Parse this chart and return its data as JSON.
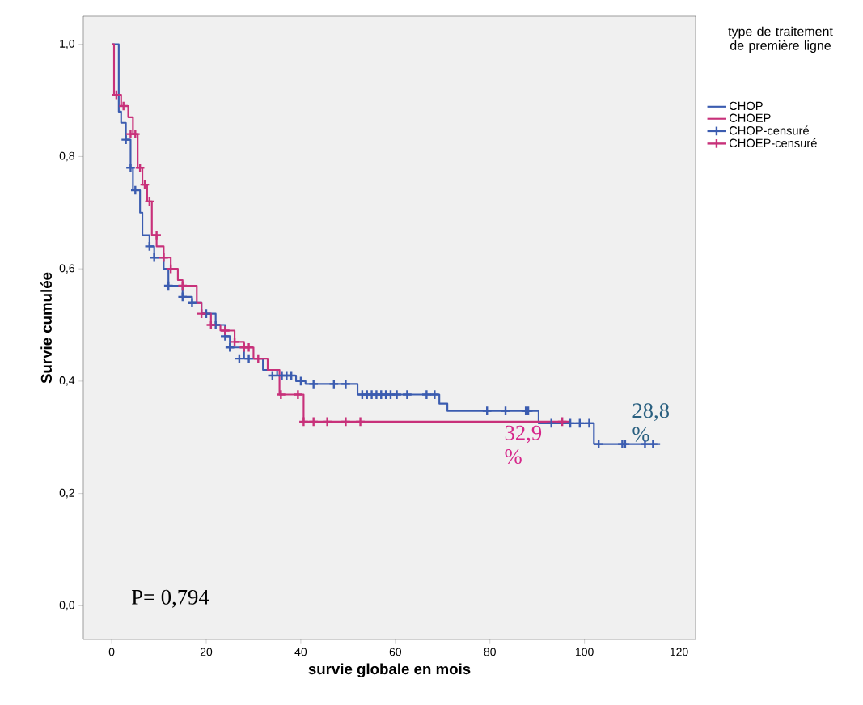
{
  "chart_data": {
    "type": "step",
    "xlabel": "survie globale en mois",
    "ylabel": "Survie cumulée",
    "legend_title": "type de traitement de première ligne",
    "legend": "right",
    "grid": false,
    "xlim": [
      -6,
      123.5
    ],
    "ylim": [
      -0.06,
      1.05
    ],
    "xticks": [
      0,
      20,
      40,
      60,
      80,
      100,
      120
    ],
    "yticks": [
      {
        "value": 0,
        "label": "0,0"
      },
      {
        "value": 0.2,
        "label": "0,2"
      },
      {
        "value": 0.4,
        "label": "0,4"
      },
      {
        "value": 0.6,
        "label": "0,6"
      },
      {
        "value": 0.8,
        "label": "0,8"
      },
      {
        "value": 1,
        "label": "1,0"
      }
    ],
    "series": [
      {
        "name": "CHOP",
        "color": "#3b5cb0",
        "x": [
          0,
          1.5,
          2,
          3,
          4,
          4.5,
          6,
          6.5,
          8,
          9,
          11,
          12,
          15,
          17,
          19,
          22,
          24,
          25,
          28,
          32,
          35,
          39,
          41,
          52,
          69.3,
          71,
          90.3,
          102,
          116
        ],
        "values": [
          1,
          0.88,
          0.86,
          0.83,
          0.78,
          0.74,
          0.7,
          0.66,
          0.64,
          0.62,
          0.6,
          0.57,
          0.55,
          0.54,
          0.52,
          0.5,
          0.48,
          0.46,
          0.44,
          0.42,
          0.41,
          0.4,
          0.395,
          0.376,
          0.36,
          0.347,
          0.325,
          0.288,
          0.288
        ]
      },
      {
        "name": "CHOEP",
        "color": "#c8317a",
        "x": [
          0,
          0.5,
          2,
          3.5,
          4.5,
          5.5,
          6.5,
          7.5,
          8.5,
          9.5,
          11,
          12.5,
          14,
          15,
          18,
          19,
          21,
          23,
          26,
          28,
          30,
          33,
          35.5,
          40.6,
          97
        ],
        "values": [
          1,
          0.91,
          0.89,
          0.87,
          0.84,
          0.78,
          0.75,
          0.72,
          0.66,
          0.64,
          0.62,
          0.6,
          0.58,
          0.57,
          0.54,
          0.52,
          0.5,
          0.49,
          0.47,
          0.46,
          0.44,
          0.42,
          0.376,
          0.328,
          0.328
        ]
      },
      {
        "name": "CHOP-censuré",
        "type": "scatter",
        "marker": "cross",
        "color": "#3b5cb0",
        "x": [
          3,
          4,
          5,
          8,
          9,
          12,
          15,
          17,
          20,
          22,
          24,
          25,
          27,
          29,
          34,
          36,
          37,
          38,
          40,
          42.7,
          47,
          49.5,
          53,
          54,
          55,
          56,
          57,
          58,
          59,
          60.3,
          62.5,
          66.6,
          68.3,
          79.4,
          83.3,
          87.6,
          88.1,
          93,
          97,
          99,
          101,
          103,
          108,
          108.6,
          112.8,
          114.5
        ],
        "values": [
          0.83,
          0.78,
          0.74,
          0.64,
          0.62,
          0.57,
          0.55,
          0.54,
          0.52,
          0.5,
          0.48,
          0.46,
          0.44,
          0.44,
          0.41,
          0.41,
          0.41,
          0.41,
          0.4,
          0.395,
          0.395,
          0.395,
          0.376,
          0.376,
          0.376,
          0.376,
          0.376,
          0.376,
          0.376,
          0.376,
          0.376,
          0.376,
          0.376,
          0.347,
          0.347,
          0.347,
          0.347,
          0.325,
          0.325,
          0.325,
          0.325,
          0.288,
          0.288,
          0.288,
          0.288,
          0.288
        ]
      },
      {
        "name": "CHOEP-censuré",
        "type": "scatter",
        "marker": "cross",
        "color": "#c8317a",
        "x": [
          1,
          2.5,
          4,
          5,
          6,
          7,
          8,
          9.5,
          11,
          12.5,
          15,
          19,
          21,
          24,
          26,
          28,
          29,
          31,
          35.8,
          39.4,
          40.6,
          42.7,
          45.6,
          49.5,
          52.6,
          95.3
        ],
        "values": [
          0.91,
          0.89,
          0.84,
          0.84,
          0.78,
          0.75,
          0.72,
          0.66,
          0.62,
          0.6,
          0.57,
          0.52,
          0.5,
          0.49,
          0.47,
          0.46,
          0.46,
          0.44,
          0.376,
          0.376,
          0.328,
          0.328,
          0.328,
          0.328,
          0.328,
          0.328
        ]
      }
    ],
    "annotations": [
      "P= 0,794",
      {
        "text": "32,9 %",
        "x": 83,
        "y": 0.329
      },
      {
        "text": "28,8 %",
        "x": 110,
        "y": 0.288
      }
    ]
  }
}
